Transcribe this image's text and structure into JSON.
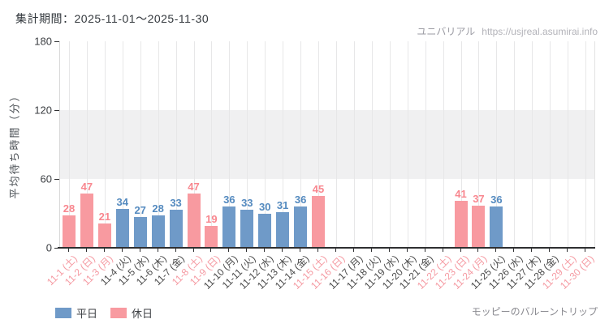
{
  "header": {
    "period_label": "集計期間：2025-11-01～2025-11-30",
    "brand": "ユニバリアル",
    "url": "https://usjreal.asumirai.info"
  },
  "footer": {
    "attraction": "モッピーのバルーントリップ"
  },
  "legend": [
    {
      "key": "weekday",
      "label": "平日",
      "color": "#6f9ac8"
    },
    {
      "key": "holiday",
      "label": "休日",
      "color": "#f89aa0"
    }
  ],
  "chart_data": {
    "type": "bar",
    "title": "集計期間：2025-11-01～2025-11-30",
    "ylabel": "平均待ち時間（分）",
    "ylim": [
      0,
      180
    ],
    "yticks": [
      0,
      60,
      120,
      180
    ],
    "band": [
      60,
      120
    ],
    "grid": "vertical-category-lines",
    "legend_position": "bottom-left",
    "categories": [
      "11-1 (土)",
      "11-2 (日)",
      "11-3 (月)",
      "11-4 (火)",
      "11-5 (水)",
      "11-6 (木)",
      "11-7 (金)",
      "11-8 (土)",
      "11-9 (日)",
      "11-10 (月)",
      "11-11 (火)",
      "11-12 (水)",
      "11-13 (木)",
      "11-14 (金)",
      "11-15 (土)",
      "11-16 (日)",
      "11-17 (月)",
      "11-18 (火)",
      "11-19 (水)",
      "11-20 (木)",
      "11-21 (金)",
      "11-22 (土)",
      "11-23 (日)",
      "11-24 (月)",
      "11-25 (火)",
      "11-26 (水)",
      "11-27 (木)",
      "11-28 (金)",
      "11-29 (土)",
      "11-30 (日)"
    ],
    "day_types": [
      "holiday",
      "holiday",
      "holiday",
      "weekday",
      "weekday",
      "weekday",
      "weekday",
      "holiday",
      "holiday",
      "weekday",
      "weekday",
      "weekday",
      "weekday",
      "weekday",
      "holiday",
      "holiday",
      "weekday",
      "weekday",
      "weekday",
      "weekday",
      "weekday",
      "holiday",
      "holiday",
      "holiday",
      "weekday",
      "weekday",
      "weekday",
      "weekday",
      "holiday",
      "holiday"
    ],
    "values": [
      28,
      47,
      21,
      34,
      27,
      28,
      33,
      47,
      19,
      36,
      33,
      30,
      31,
      36,
      45,
      null,
      null,
      null,
      null,
      null,
      null,
      null,
      41,
      37,
      36,
      null,
      null,
      null,
      null,
      null
    ],
    "colors": {
      "weekday_bar": "#6f9ac8",
      "holiday_bar": "#f89aa0",
      "weekday_value_text": "#548abf",
      "holiday_value_text": "#f8878f",
      "weekday_axis_label": "#4a4a4a",
      "holiday_axis_label": "#f59aa2",
      "band_fill": "#f0f0f1",
      "axis_line": "#2e2f31"
    }
  }
}
